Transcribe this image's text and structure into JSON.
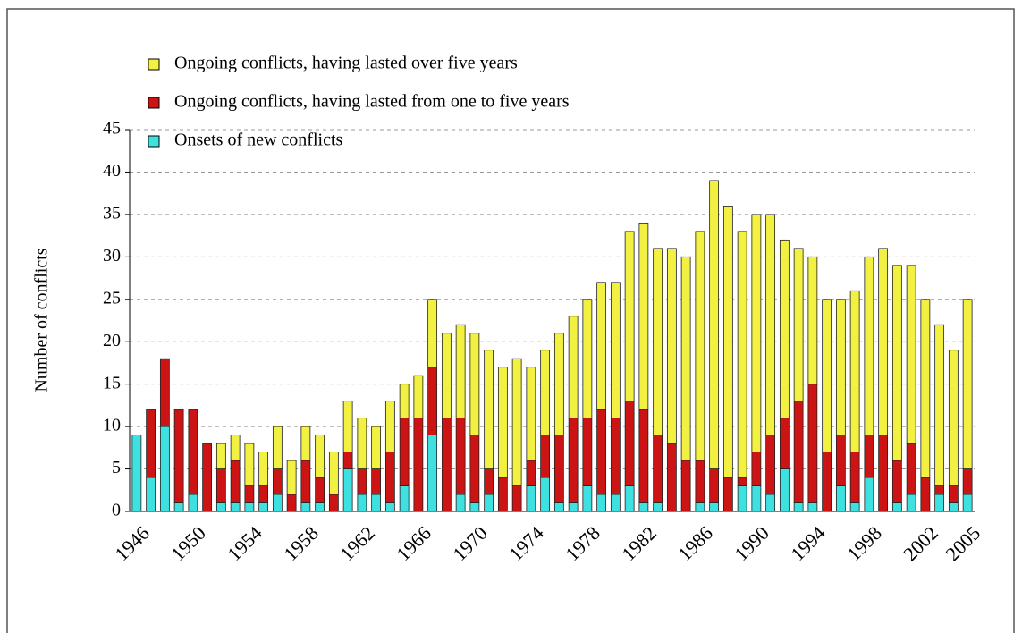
{
  "chart_data": {
    "type": "bar",
    "stacked": true,
    "y_label": "Number of conflicts",
    "categories": [
      "1946",
      null,
      null,
      null,
      "1950",
      null,
      null,
      null,
      "1954",
      null,
      null,
      null,
      "1958",
      null,
      null,
      null,
      "1962",
      null,
      null,
      null,
      "1966",
      null,
      null,
      null,
      "1970",
      null,
      null,
      null,
      "1974",
      null,
      null,
      null,
      "1978",
      null,
      null,
      null,
      "1982",
      null,
      null,
      null,
      "1986",
      null,
      null,
      null,
      "1990",
      null,
      null,
      null,
      "1994",
      null,
      null,
      null,
      "1998",
      null,
      null,
      null,
      "2002",
      null,
      null,
      "2005"
    ],
    "series": [
      {
        "name": "Onsets of new conflicts",
        "color": "#3fe0e0",
        "values": [
          9,
          4,
          10,
          1,
          2,
          0,
          1,
          1,
          1,
          1,
          2,
          0,
          1,
          1,
          0,
          5,
          2,
          2,
          1,
          3,
          0,
          9,
          0,
          2,
          1,
          2,
          0,
          0,
          3,
          4,
          1,
          1,
          3,
          2,
          2,
          3,
          1,
          1,
          0,
          0,
          1,
          1,
          0,
          3,
          3,
          2,
          5,
          1,
          1,
          0,
          3,
          1,
          4,
          0,
          1,
          2,
          0,
          2,
          1,
          2
        ]
      },
      {
        "name": "Ongoing conflicts, having lasted from one to five years",
        "color": "#cc1414",
        "values": [
          0,
          8,
          8,
          11,
          10,
          8,
          4,
          5,
          2,
          2,
          3,
          2,
          5,
          3,
          2,
          2,
          3,
          3,
          6,
          8,
          11,
          8,
          11,
          9,
          8,
          3,
          4,
          3,
          3,
          5,
          8,
          10,
          8,
          10,
          9,
          10,
          11,
          8,
          8,
          6,
          5,
          4,
          4,
          1,
          4,
          7,
          6,
          12,
          14,
          7,
          6,
          6,
          5,
          9,
          5,
          6,
          4,
          1,
          2,
          3
        ]
      },
      {
        "name": "Ongoing conflicts, having lasted over five years",
        "color": "#f2f040",
        "values": [
          0,
          0,
          0,
          0,
          0,
          0,
          3,
          3,
          5,
          4,
          5,
          4,
          4,
          5,
          5,
          6,
          6,
          5,
          6,
          4,
          5,
          8,
          10,
          11,
          12,
          14,
          13,
          15,
          11,
          10,
          12,
          12,
          14,
          15,
          16,
          20,
          22,
          22,
          23,
          24,
          27,
          34,
          32,
          29,
          28,
          26,
          21,
          18,
          15,
          18,
          16,
          19,
          21,
          22,
          23,
          21,
          21,
          19,
          16,
          20
        ]
      }
    ],
    "ylim": [
      0,
      45
    ],
    "yticks": [
      0,
      5,
      10,
      15,
      20,
      25,
      30,
      35,
      40,
      45
    ],
    "grid": true,
    "legend": "top-left"
  }
}
